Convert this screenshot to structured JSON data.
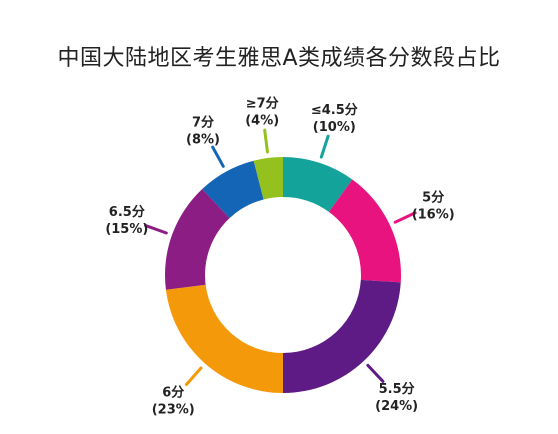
{
  "chart_data": {
    "type": "pie",
    "title": "中国大陆地区考生雅思A类成绩各分数段占比",
    "categories": [
      "≤4.5分",
      "5分",
      "5.5分",
      "6分",
      "6.5分",
      "7分",
      "≥7分"
    ],
    "values": [
      10,
      16,
      24,
      23,
      15,
      8,
      4
    ],
    "value_labels": [
      "(10%)",
      "(16%)",
      "(24%)",
      "(23%)",
      "(15%)",
      "(8%)",
      "(4%)"
    ],
    "colors": [
      "#13a39a",
      "#e8137f",
      "#5e1a85",
      "#f49a0a",
      "#8c1d84",
      "#1465b5",
      "#94c11e"
    ],
    "donut": true,
    "start_angle_deg": 0,
    "direction": "clockwise"
  }
}
